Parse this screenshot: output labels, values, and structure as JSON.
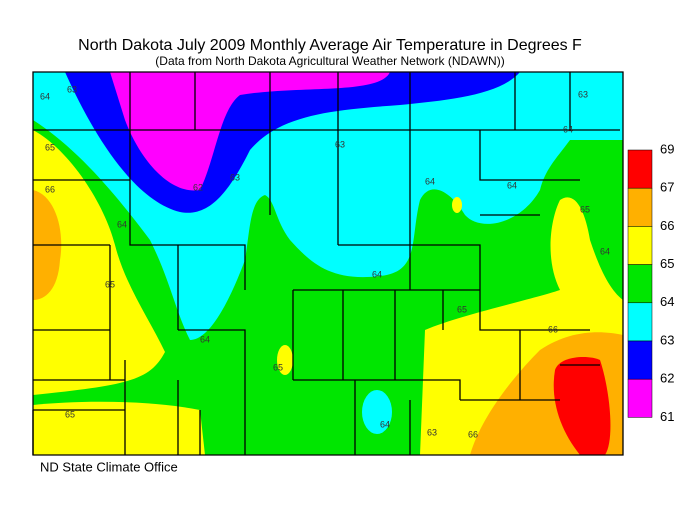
{
  "header": {
    "title": "North Dakota July 2009 Monthly Average Air Temperature in Degrees F",
    "subtitle": "(Data from North Dakota Agricultural Weather Network (NDAWN))"
  },
  "legend": {
    "labels": [
      "69",
      "67",
      "66",
      "65",
      "64",
      "63",
      "62",
      "61"
    ],
    "colors": [
      "#ff0000",
      "#ffb000",
      "#ffff00",
      "#00e600",
      "#00ffff",
      "#0000ff",
      "#ff00ff"
    ]
  },
  "contour_labels": [
    "63",
    "64",
    "65",
    "66",
    "64",
    "65",
    "64",
    "65",
    "63",
    "62",
    "63",
    "64",
    "64",
    "64",
    "65",
    "66",
    "65",
    "64",
    "63",
    "66",
    "63",
    "64",
    "65",
    "64"
  ],
  "credit": "ND State Climate Office"
}
